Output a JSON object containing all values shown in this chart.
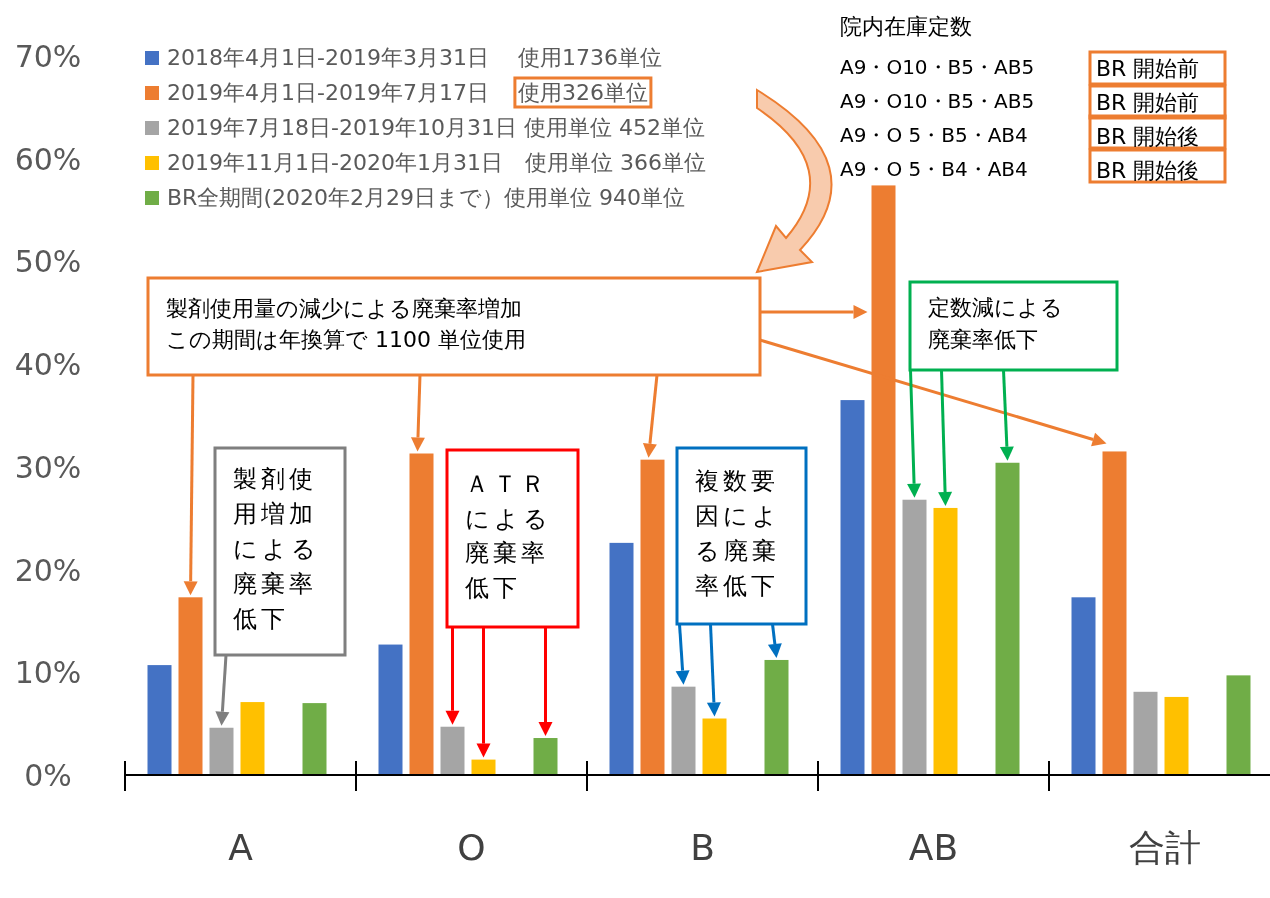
{
  "chart_data": {
    "type": "bar",
    "categories": [
      "A",
      "O",
      "B",
      "AB",
      "合計"
    ],
    "ylim": [
      0,
      70
    ],
    "yticks": [
      {
        "value": 0,
        "label": "0%"
      },
      {
        "value": 10,
        "label": "10%"
      },
      {
        "value": 20,
        "label": "20%"
      },
      {
        "value": 30,
        "label": "30%"
      },
      {
        "value": 40,
        "label": "40%"
      },
      {
        "value": 50,
        "label": "50%"
      },
      {
        "value": 60,
        "label": "60%"
      },
      {
        "value": 70,
        "label": "70%"
      }
    ],
    "legend": "top left",
    "series": [
      {
        "name": "2018年4月1日-2019年3月31日　 使用1736単位",
        "color": "#4472c4",
        "values": [
          10.7,
          12.7,
          22.6,
          36.5,
          17.3
        ]
      },
      {
        "name": "2019年4月1日-2019年7月17日　 使用326単位",
        "color": "#ed7d31",
        "values": [
          17.3,
          31.3,
          30.7,
          57.4,
          31.5
        ]
      },
      {
        "name": "2019年7月18日-2019年10月31日 使用単位 452単位",
        "color": "#a5a5a5",
        "values": [
          4.6,
          4.7,
          8.6,
          26.8,
          8.1
        ]
      },
      {
        "name": "2019年11月1日-2020年1月31日　使用単位 366単位",
        "color": "#ffc000",
        "values": [
          7.1,
          1.5,
          5.5,
          26.0,
          7.6
        ]
      },
      {
        "name": "BR全期間(2020年2月29日まで）使用単位 940単位",
        "color": "#70ad47",
        "values": [
          7.0,
          3.6,
          11.2,
          30.4,
          9.7
        ]
      }
    ],
    "annotations": [
      "院内在庫定数",
      "A9・O10・B5・AB5",
      "BR 開始前",
      "A9・O10・B5・AB5",
      "BR 開始前",
      "A9・O 5・B5・AB4",
      "BR 開始後",
      "A9・O 5・B4・AB4",
      "BR 開始後",
      "製剤使用量の減少による廃棄率増加この期間は年換算で 1100 単位使用",
      "製剤使用増加による廃棄率低下",
      "ＡＴＲによる廃棄率低下",
      "複数要因による廃棄率低下",
      "定数減による廃棄率低下"
    ]
  }
}
